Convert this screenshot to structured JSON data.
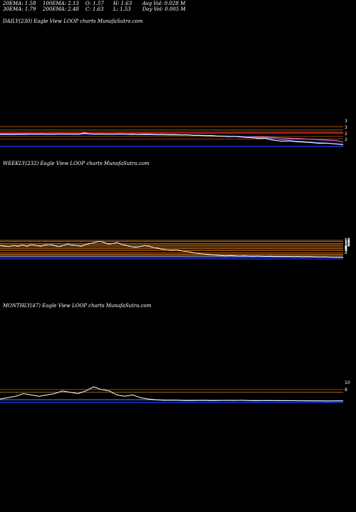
{
  "stats": {
    "ema20": "20EMA: 1.58",
    "ema30": "30EMA: 1.79",
    "ema100": "100EMA: 2.13",
    "ema200": "200EMA: 2.48",
    "open": "O: 1.57",
    "close": "C: 1.63",
    "high": "H: 1.63",
    "low": "L: 1.53",
    "avg_vol": "Avg Vol: 0.028  M",
    "day_vol": "Day Vol: 0.005 M"
  },
  "panels": {
    "daily": {
      "title": "DAILY(230) Eagle   View  LOOP charts MunafaSutra.com"
    },
    "weekly": {
      "title": "WEEKLY(232) Eagle   View  LOOP charts MunafaSutra.com"
    },
    "monthly": {
      "title": "MONTHLY(47) Eagle   View  LOOP charts MunafaSutra.com"
    }
  },
  "colors": {
    "background": "#000000",
    "price": "#ffffff",
    "ema_short": "#4169e1",
    "ema_long": "#ff3030",
    "ema_mid": "#ff66ff",
    "level_line": "#ff8c1a",
    "volume": "#1e3cff"
  },
  "chart_data": [
    {
      "type": "line",
      "title": "DAILY(230) Eagle   View  LOOP charts MunafaSutra.com",
      "ylabel": "",
      "ytick_labels": [
        "3",
        "3",
        "2",
        "2"
      ],
      "series": [],
      "price": [
        2.35,
        2.36,
        2.34,
        2.37,
        2.35,
        2.38,
        2.36,
        2.37,
        2.35,
        2.36,
        2.38,
        2.37,
        2.36,
        2.35,
        2.45,
        2.38,
        2.36,
        2.37,
        2.35,
        2.36,
        2.38,
        2.35,
        2.36,
        2.34,
        2.36,
        2.35,
        2.33,
        2.34,
        2.32,
        2.33,
        2.3,
        2.31,
        2.28,
        2.27,
        2.25,
        2.26,
        2.22,
        2.2,
        2.18,
        2.2,
        2.16,
        2.12,
        2.1,
        2.05,
        2.08,
        1.95,
        1.9,
        1.85,
        1.88,
        1.82,
        1.8,
        1.78,
        1.75,
        1.7,
        1.72,
        1.68,
        1.65,
        1.63
      ],
      "ema_short": [
        2.32,
        2.33,
        2.33,
        2.33,
        2.33,
        2.34,
        2.34,
        2.34,
        2.34,
        2.34,
        2.35,
        2.35,
        2.35,
        2.34,
        2.36,
        2.36,
        2.35,
        2.35,
        2.35,
        2.35,
        2.35,
        2.35,
        2.35,
        2.34,
        2.34,
        2.34,
        2.33,
        2.33,
        2.32,
        2.32,
        2.31,
        2.3,
        2.29,
        2.28,
        2.27,
        2.26,
        2.24,
        2.22,
        2.21,
        2.2,
        2.18,
        2.16,
        2.14,
        2.11,
        2.1,
        2.05,
        2.0,
        1.95,
        1.92,
        1.88,
        1.85,
        1.82,
        1.79,
        1.75,
        1.73,
        1.7,
        1.66,
        1.58
      ],
      "ema_mid": [
        2.38,
        2.38,
        2.38,
        2.38,
        2.38,
        2.38,
        2.37,
        2.37,
        2.37,
        2.37,
        2.37,
        2.37,
        2.36,
        2.36,
        2.36,
        2.36,
        2.35,
        2.35,
        2.35,
        2.34,
        2.34,
        2.34,
        2.33,
        2.33,
        2.32,
        2.32,
        2.31,
        2.31,
        2.3,
        2.3,
        2.29,
        2.29,
        2.28,
        2.27,
        2.26,
        2.25,
        2.24,
        2.23,
        2.22,
        2.21,
        2.2,
        2.19,
        2.18,
        2.16,
        2.15,
        2.13,
        2.11,
        2.09,
        2.07,
        2.05,
        2.03,
        2.01,
        1.99,
        1.96,
        1.94,
        1.92,
        1.89,
        1.79
      ],
      "ema_long": [
        2.5,
        2.5,
        2.5,
        2.5,
        2.5,
        2.5,
        2.5,
        2.5,
        2.5,
        2.5,
        2.5,
        2.5,
        2.5,
        2.5,
        2.5,
        2.5,
        2.5,
        2.5,
        2.5,
        2.5,
        2.5,
        2.5,
        2.5,
        2.5,
        2.5,
        2.5,
        2.5,
        2.5,
        2.5,
        2.5,
        2.5,
        2.5,
        2.5,
        2.5,
        2.5,
        2.5,
        2.5,
        2.5,
        2.5,
        2.5,
        2.5,
        2.5,
        2.5,
        2.5,
        2.5,
        2.5,
        2.5,
        2.5,
        2.5,
        2.5,
        2.5,
        2.5,
        2.5,
        2.5,
        2.5,
        2.5,
        2.49,
        2.48
      ],
      "levels": [
        2.9,
        2.65,
        2.4,
        2.2,
        2.0
      ]
    },
    {
      "type": "line",
      "title": "WEEKLY(232) Eagle   View  LOOP charts MunafaSutra.com",
      "ylabel": "",
      "ytick_labels": [
        "18",
        "17",
        "15",
        "14",
        "13",
        "12",
        "11",
        "10",
        "9",
        "8",
        "6",
        "5",
        "4",
        "3",
        "2"
      ],
      "series": [],
      "price": [
        13,
        12.5,
        12,
        13,
        12.5,
        13.5,
        12.5,
        14,
        13,
        12.5,
        13.5,
        14,
        13,
        12,
        13,
        14.5,
        13.5,
        13,
        12.5,
        14,
        15,
        16,
        17,
        16,
        14.5,
        15,
        16,
        14,
        13,
        12,
        11.5,
        12,
        13,
        12.5,
        11,
        10.5,
        9.5,
        9,
        8.5,
        9,
        8,
        7.5,
        7,
        6,
        5.5,
        5,
        4.5,
        4,
        3.8,
        3.5,
        3.2,
        3.5,
        3.2,
        3,
        3.2,
        3,
        2.8,
        3,
        2.8,
        2.6,
        2.8,
        2.5,
        2.6,
        2.4,
        2.6,
        2.3,
        2.5,
        2.2,
        2.4,
        2.2,
        2.1,
        2,
        2.1,
        1.9,
        1.8,
        1.7,
        1.63
      ],
      "ema_short": [
        2.2,
        2.2,
        2.2,
        2.2,
        2.2,
        2.2,
        2.2,
        2.2,
        2.2,
        2.2,
        2.2,
        2.2,
        2.2,
        2.2,
        2.2,
        2.2,
        2.2,
        2.2,
        2.2,
        2.2,
        2.2,
        2.2,
        2.2,
        2.2,
        2.2,
        2.2,
        2.2,
        2.2,
        2.2,
        2.2,
        2.2,
        2.2,
        2.2,
        2.2,
        2.2,
        2.2,
        2.2,
        2.2,
        2.2,
        2.2,
        2.2,
        2.2,
        2.1,
        2.1,
        2.1,
        2.1,
        2.1,
        2.1,
        2.1,
        2.1,
        2.1,
        2.1,
        2.1,
        2.1,
        2.1,
        2.1,
        2.1,
        2.1,
        2.1,
        2.1,
        2.1,
        2.1,
        2.1,
        2.1,
        2.1,
        2.1,
        2.1,
        2.1,
        2.1,
        2.1,
        2.0,
        2.0,
        2.0,
        1.9,
        1.9,
        1.8,
        1.7
      ],
      "levels": [
        18,
        17,
        15,
        14,
        13,
        12,
        11,
        10,
        9,
        8,
        6,
        5,
        4,
        3,
        2
      ]
    },
    {
      "type": "line",
      "title": "MONTHLY(47) Eagle   View  LOOP charts MunafaSutra.com",
      "ylabel": "",
      "ytick_labels": [
        "10",
        "8"
      ],
      "series": [],
      "price": [
        3,
        4,
        5,
        7,
        6,
        5,
        6,
        7,
        9,
        8,
        7,
        9,
        12,
        10,
        9,
        6,
        5,
        6,
        4,
        3,
        2.5,
        2,
        2.2,
        2,
        1.8,
        1.9,
        2,
        1.8,
        1.9,
        2,
        1.9,
        2.1,
        1.8,
        1.7,
        1.9,
        1.8,
        1.7,
        1.8,
        1.7,
        1.6,
        1.7,
        1.6,
        1.5,
        1.6,
        1.63
      ],
      "ema_short": [
        2.5,
        2.5,
        2.5,
        2.5,
        2.5,
        2.5,
        2.5,
        2.5,
        2.5,
        2.5,
        2.5,
        2.5,
        2.5,
        2.5,
        2.5,
        2.5,
        2.5,
        2.5,
        2.5,
        2.4,
        2.4,
        2.4,
        2.3,
        2.3,
        2.3,
        2.2,
        2.2,
        2.2,
        2.1,
        2.1,
        2.1,
        2.0,
        2.0,
        2.0,
        1.9,
        1.9,
        1.9,
        1.8,
        1.8,
        1.8,
        1.7,
        1.7,
        1.7,
        1.6,
        1.6
      ],
      "levels": [
        10,
        8
      ]
    }
  ]
}
